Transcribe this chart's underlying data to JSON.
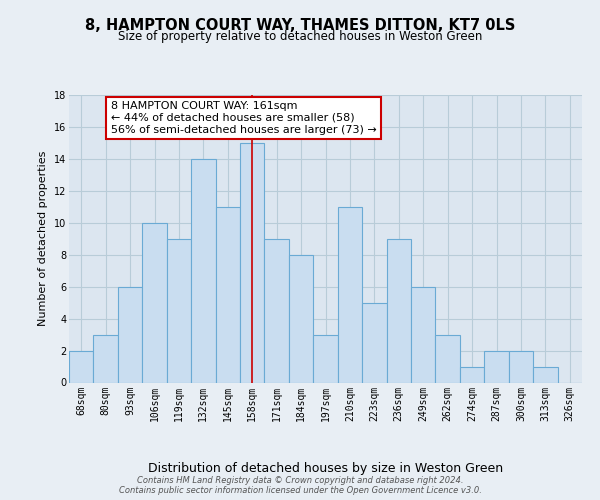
{
  "title": "8, HAMPTON COURT WAY, THAMES DITTON, KT7 0LS",
  "subtitle": "Size of property relative to detached houses in Weston Green",
  "xlabel": "Distribution of detached houses by size in Weston Green",
  "ylabel": "Number of detached properties",
  "categories": [
    "68sqm",
    "80sqm",
    "93sqm",
    "106sqm",
    "119sqm",
    "132sqm",
    "145sqm",
    "158sqm",
    "171sqm",
    "184sqm",
    "197sqm",
    "210sqm",
    "223sqm",
    "236sqm",
    "249sqm",
    "262sqm",
    "274sqm",
    "287sqm",
    "300sqm",
    "313sqm",
    "326sqm"
  ],
  "values": [
    2,
    3,
    6,
    10,
    9,
    14,
    11,
    15,
    9,
    8,
    3,
    11,
    5,
    9,
    6,
    3,
    1,
    2,
    2,
    1,
    0
  ],
  "bar_color": "#c9ddf0",
  "bar_edge_color": "#6aaad4",
  "property_line_index": 7,
  "property_line_color": "#cc0000",
  "annotation_text": "8 HAMPTON COURT WAY: 161sqm\n← 44% of detached houses are smaller (58)\n56% of semi-detached houses are larger (73) →",
  "annotation_box_color": "#ffffff",
  "annotation_box_edge_color": "#cc0000",
  "ylim": [
    0,
    18
  ],
  "yticks": [
    0,
    2,
    4,
    6,
    8,
    10,
    12,
    14,
    16,
    18
  ],
  "background_color": "#e8eef4",
  "plot_background_color": "#dce6f0",
  "grid_color": "#b8ccd8",
  "footer_text": "Contains HM Land Registry data © Crown copyright and database right 2024.\nContains public sector information licensed under the Open Government Licence v3.0.",
  "title_fontsize": 10.5,
  "subtitle_fontsize": 8.5,
  "xlabel_fontsize": 9,
  "ylabel_fontsize": 8,
  "tick_fontsize": 7,
  "annotation_fontsize": 8,
  "footer_fontsize": 6
}
